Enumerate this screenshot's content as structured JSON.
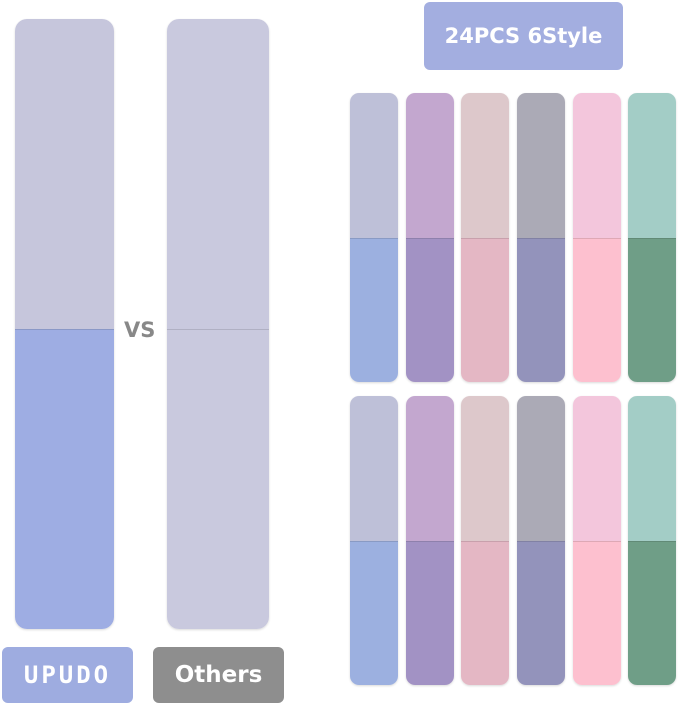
{
  "header": {
    "badge": "24PCS 6Style"
  },
  "comparison": {
    "vs": "VS",
    "brand_label": "UPUDO",
    "other_label": "Others",
    "brand_strip": {
      "top": "#c6c6dc",
      "bottom": "#9eade3"
    },
    "other_strip": {
      "top": "#c9c9de",
      "bottom": "#c9c9de"
    }
  },
  "styles": [
    {
      "top": "#bec0d8",
      "bottom": "#9cb0e0"
    },
    {
      "top": "#c3a7cf",
      "bottom": "#a292c4"
    },
    {
      "top": "#ddc8cb",
      "bottom": "#e4b7c4"
    },
    {
      "top": "#abaab6",
      "bottom": "#9393bb"
    },
    {
      "top": "#f3c6dc",
      "bottom": "#fdc0cf"
    },
    {
      "top": "#a3cdc6",
      "bottom": "#6f9e87"
    }
  ]
}
